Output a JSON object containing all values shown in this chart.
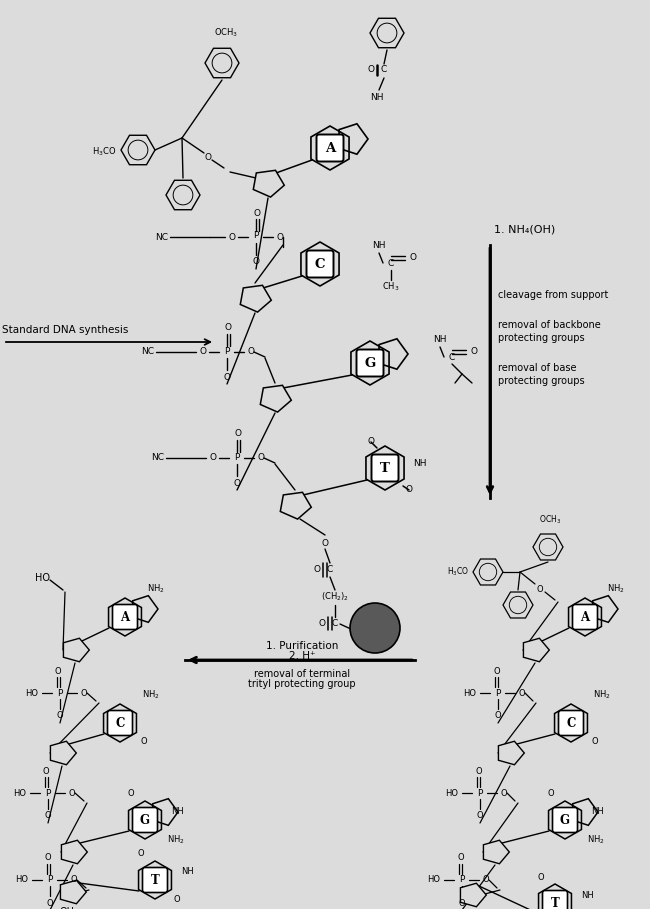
{
  "background_color": "#dcdcdc",
  "fig_width": 6.5,
  "fig_height": 9.09,
  "arrow1_label": "1. NH₄(OH)",
  "arrow1_side": [
    "cleavage from support",
    "removal of backbone",
    "protecting groups",
    "removal of base",
    "protecting groups"
  ],
  "arrow2_label1": "1. Purification",
  "arrow2_label2": "2. H⁺",
  "arrow2_sub1": "removal of terminal",
  "arrow2_sub2": "trityl protecting group",
  "std_dna_label": "Standard DNA synthesis"
}
